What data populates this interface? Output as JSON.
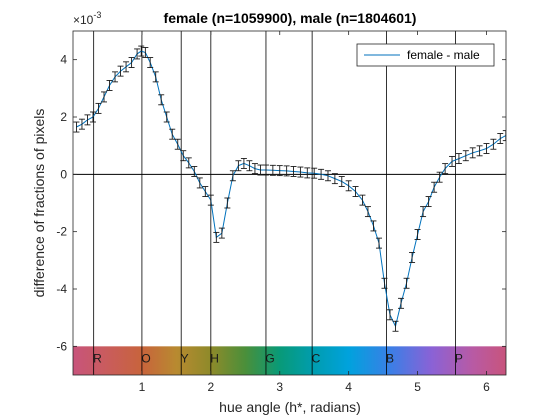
{
  "chart_data": {
    "type": "line",
    "title": "female (n=1059900), male (n=1804601)",
    "xlabel": "hue angle (h*, radians)",
    "ylabel": "difference of fractions of pixels",
    "y_exponent_label": "×10",
    "y_exponent": "-3",
    "xlim": [
      0,
      6.2832
    ],
    "ylim": [
      -7,
      5
    ],
    "xticks": [
      1,
      2,
      3,
      4,
      5,
      6
    ],
    "yticks": [
      -6,
      -4,
      -2,
      0,
      2,
      4
    ],
    "x_tick_labels": [
      "1",
      "2",
      "3",
      "4",
      "5",
      "6"
    ],
    "y_tick_labels": [
      "-6",
      "-4",
      "-2",
      "0",
      "2",
      "4"
    ],
    "grid": false,
    "legend_position": "top-right",
    "series": [
      {
        "name": "female - male",
        "color": "#0072BD",
        "x": [
          0.05,
          0.13,
          0.21,
          0.29,
          0.37,
          0.45,
          0.53,
          0.61,
          0.69,
          0.77,
          0.85,
          0.93,
          0.99,
          1.05,
          1.12,
          1.2,
          1.28,
          1.36,
          1.44,
          1.52,
          1.6,
          1.68,
          1.76,
          1.84,
          1.92,
          2.0,
          2.08,
          2.16,
          2.24,
          2.32,
          2.4,
          2.48,
          2.56,
          2.64,
          2.72,
          2.8,
          2.9,
          3.0,
          3.1,
          3.2,
          3.3,
          3.4,
          3.5,
          3.6,
          3.7,
          3.8,
          3.9,
          4.0,
          4.1,
          4.2,
          4.28,
          4.36,
          4.44,
          4.52,
          4.6,
          4.68,
          4.76,
          4.84,
          4.92,
          5.0,
          5.08,
          5.16,
          5.24,
          5.32,
          5.4,
          5.5,
          5.6,
          5.7,
          5.8,
          5.9,
          6.0,
          6.1,
          6.2,
          6.28
        ],
        "values": [
          1.65,
          1.75,
          1.9,
          2.0,
          2.3,
          2.7,
          3.1,
          3.4,
          3.6,
          3.75,
          3.9,
          4.2,
          4.3,
          4.25,
          3.9,
          3.4,
          2.6,
          2.0,
          1.4,
          1.05,
          0.65,
          0.4,
          0.1,
          -0.3,
          -0.6,
          -0.9,
          -2.2,
          -2.05,
          -1.0,
          -0.05,
          0.3,
          0.38,
          0.3,
          0.2,
          0.15,
          0.15,
          0.14,
          0.13,
          0.12,
          0.1,
          0.08,
          0.05,
          0.04,
          0.0,
          -0.05,
          -0.15,
          -0.25,
          -0.4,
          -0.6,
          -0.9,
          -1.3,
          -1.8,
          -2.4,
          -3.8,
          -4.9,
          -5.3,
          -4.5,
          -3.8,
          -2.9,
          -2.1,
          -1.3,
          -0.95,
          -0.45,
          -0.1,
          0.2,
          0.45,
          0.55,
          0.65,
          0.75,
          0.82,
          0.9,
          1.05,
          1.25,
          1.35
        ]
      }
    ],
    "vertical_lines_x": [
      0.3,
      1.0,
      1.57,
      2.0,
      2.8,
      3.47,
      4.55,
      5.55
    ],
    "hue_band": {
      "y_range": [
        -7,
        -6
      ],
      "labels": [
        {
          "text": "R",
          "x": 0.35
        },
        {
          "text": "O",
          "x": 1.05
        },
        {
          "text": "Y",
          "x": 1.62
        },
        {
          "text": "H",
          "x": 2.05
        },
        {
          "text": "G",
          "x": 2.85
        },
        {
          "text": "C",
          "x": 3.52
        },
        {
          "text": "B",
          "x": 4.6
        },
        {
          "text": "P",
          "x": 5.6
        }
      ],
      "color_stops": [
        {
          "x": 0.0,
          "color": "#c8547c"
        },
        {
          "x": 0.5,
          "color": "#c95c5c"
        },
        {
          "x": 1.0,
          "color": "#c8643c"
        },
        {
          "x": 1.5,
          "color": "#b88a30"
        },
        {
          "x": 2.0,
          "color": "#8e8a2a"
        },
        {
          "x": 2.5,
          "color": "#4a8f3a"
        },
        {
          "x": 3.0,
          "color": "#089a78"
        },
        {
          "x": 3.5,
          "color": "#009db0"
        },
        {
          "x": 4.0,
          "color": "#00a2dd"
        },
        {
          "x": 4.6,
          "color": "#3a7fe6"
        },
        {
          "x": 5.2,
          "color": "#8a62d6"
        },
        {
          "x": 5.8,
          "color": "#b85aa4"
        },
        {
          "x": 6.2832,
          "color": "#c8547c"
        }
      ]
    }
  }
}
